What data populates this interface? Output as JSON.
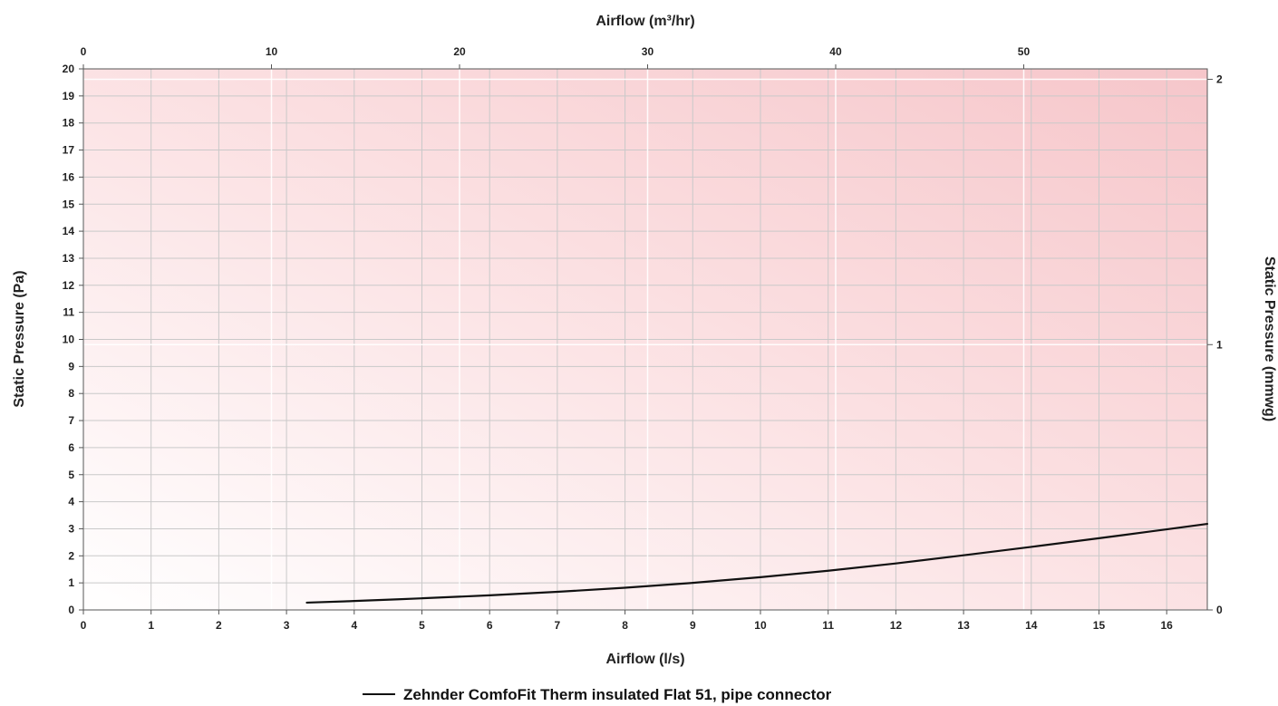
{
  "chart_data": {
    "type": "line",
    "xlabel_bottom": "Airflow (l/s)",
    "xlabel_top": "Airflow (m³/hr)",
    "ylabel_left": "Static Pressure (Pa)",
    "ylabel_right": "Static Pressure (mmwg)",
    "xlim": [
      0,
      16.6
    ],
    "ylim": [
      0,
      20
    ],
    "x_ticks": [
      0,
      1,
      2,
      3,
      4,
      5,
      6,
      7,
      8,
      9,
      10,
      11,
      12,
      13,
      14,
      15,
      16
    ],
    "y_ticks": [
      0,
      1,
      2,
      3,
      4,
      5,
      6,
      7,
      8,
      9,
      10,
      11,
      12,
      13,
      14,
      15,
      16,
      17,
      18,
      19,
      20
    ],
    "top_ticks": [
      0,
      10,
      20,
      30,
      40,
      50
    ],
    "right_ticks": [
      0,
      1,
      2
    ],
    "grid": true,
    "legend_position": "bottom-center",
    "series": [
      {
        "name": "Zehnder ComfoFit Therm insulated Flat 51, pipe connector",
        "color": "#111111",
        "x": [
          3.3,
          4,
          5,
          6,
          7,
          8,
          9,
          10,
          11,
          12,
          13,
          14,
          15,
          16,
          16.6
        ],
        "y": [
          0.27,
          0.33,
          0.43,
          0.54,
          0.67,
          0.82,
          1.0,
          1.21,
          1.45,
          1.72,
          2.02,
          2.33,
          2.65,
          2.98,
          3.18
        ]
      }
    ]
  }
}
